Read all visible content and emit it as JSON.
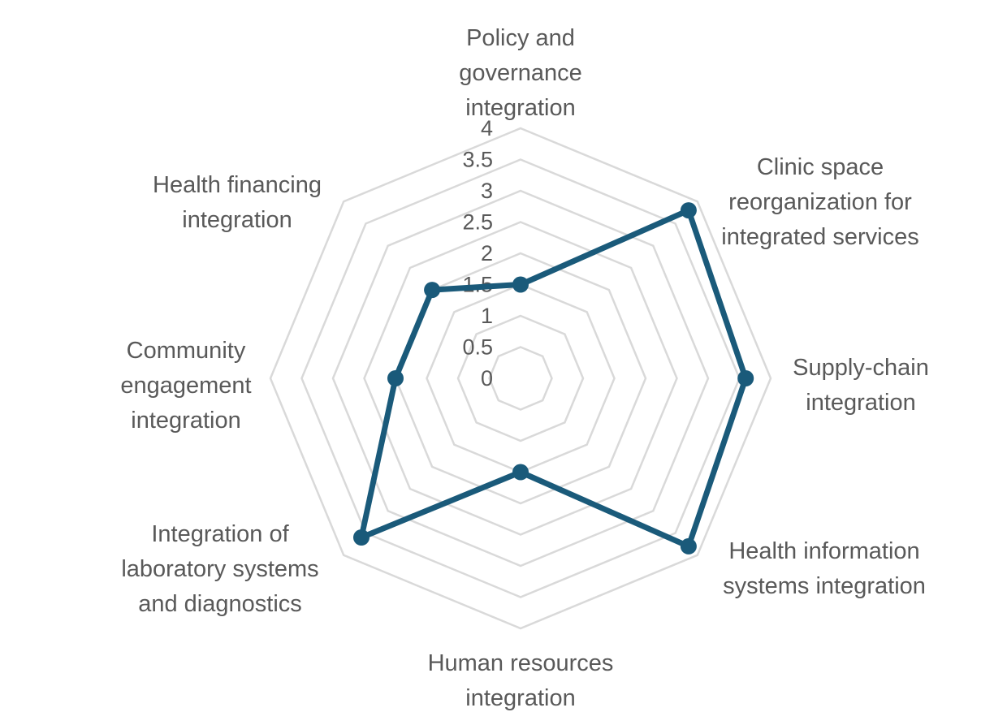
{
  "chart_data": {
    "type": "radar",
    "categories": [
      "Policy and governance integration",
      "Clinic space reorganization for integrated services",
      "Supply-chain integration",
      "Health information systems integration",
      "Human resources integration",
      "Integration of laboratory systems and diagnostics",
      "Community engagement integration",
      "Health financing integration"
    ],
    "category_lines": [
      [
        "Policy and",
        "governance",
        "integration"
      ],
      [
        "Clinic space",
        "reorganization for",
        "integrated services"
      ],
      [
        "Supply-chain",
        "integration"
      ],
      [
        "Health information",
        "systems integration"
      ],
      [
        "Human resources",
        "integration"
      ],
      [
        "Integration of",
        "laboratory systems",
        "and diagnostics"
      ],
      [
        "Community",
        "engagement",
        "integration"
      ],
      [
        "Health financing",
        "integration"
      ]
    ],
    "series": [
      {
        "values": [
          1.5,
          3.8,
          3.6,
          3.8,
          1.5,
          3.6,
          2.0,
          2.0
        ]
      }
    ],
    "rlim": [
      0,
      4
    ],
    "ticks": [
      "0",
      "0.5",
      "1",
      "1.5",
      "2",
      "2.5",
      "3",
      "3.5",
      "4"
    ],
    "grid": true,
    "legend": "none",
    "colors": {
      "series": "#1a5a7a",
      "grid": "#d9d9d9",
      "text": "#595959"
    }
  }
}
